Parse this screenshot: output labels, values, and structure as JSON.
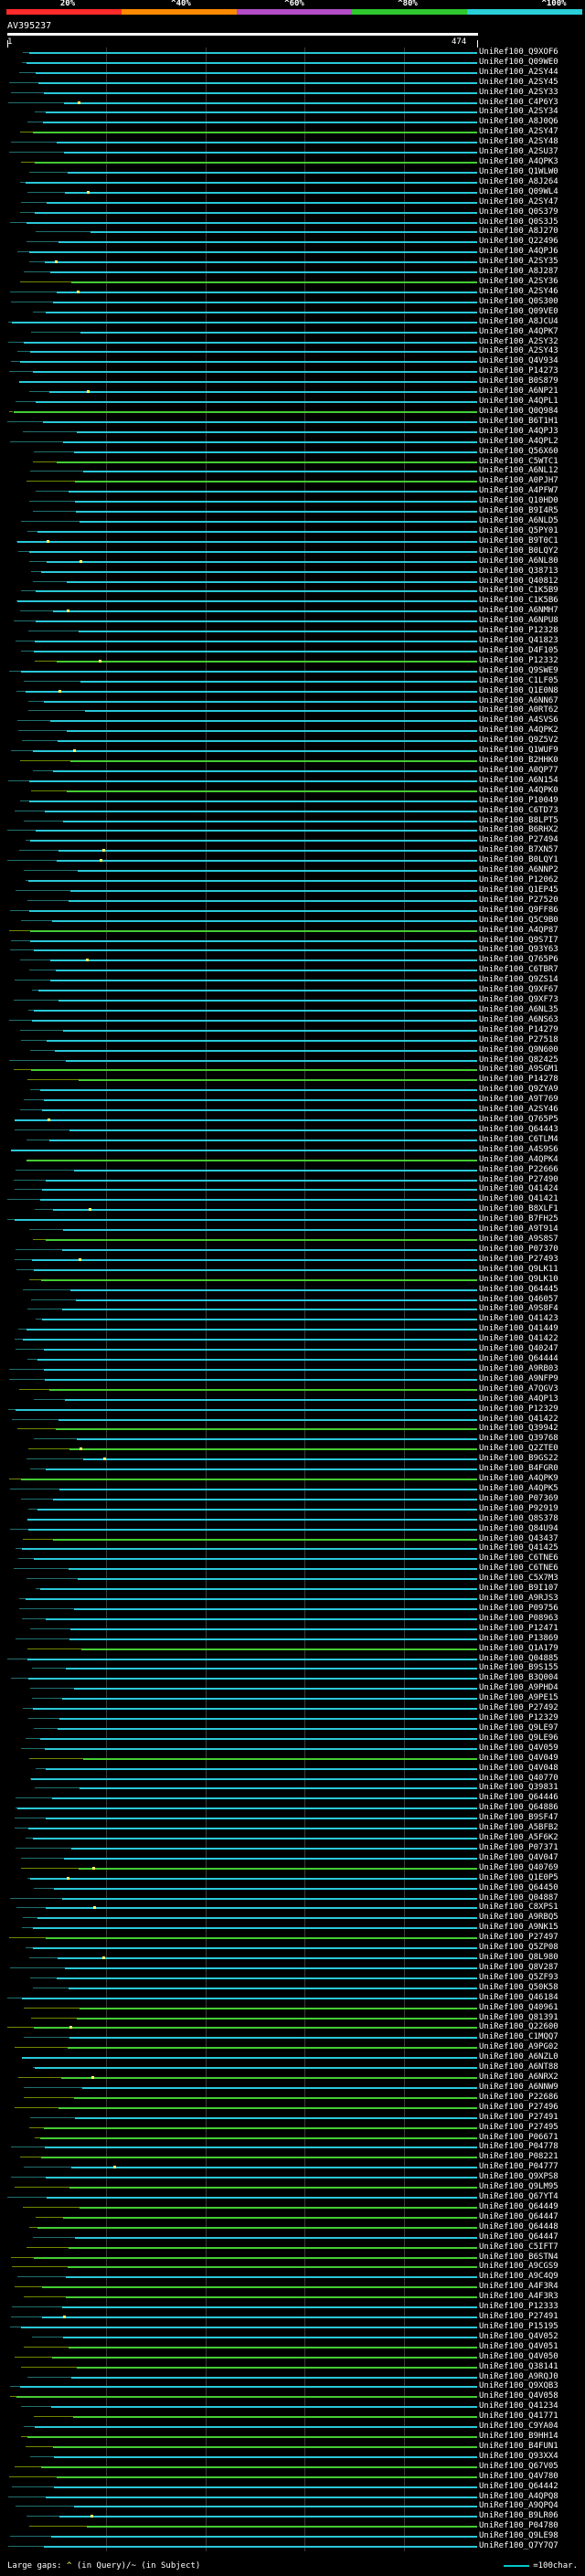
{
  "scale": {
    "labels": [
      "20%",
      "^40%",
      "^60%",
      "^80%",
      "^100%"
    ],
    "colors": [
      "#ff2a2a",
      "#ff8a00",
      "#b44cc8",
      "#2fc82f",
      "#29d0d8"
    ]
  },
  "query": {
    "id": "AV395237",
    "start": "1",
    "end": "474"
  },
  "hits": {
    "colors": {
      "main": "#29c8d8",
      "green": "#44cc33",
      "olive": "#6f8a00",
      "gap": "#1f6f6f",
      "mark": "#ffff66"
    },
    "query_length": 474,
    "ids": [
      "UniRef100_Q9XOF6",
      "UniRef100_Q09WE0",
      "UniRef100_A2SY44",
      "UniRef100_A2SY45",
      "UniRef100_A2SY33",
      "UniRef100_C4P6Y3",
      "UniRef100_A2SY34",
      "UniRef100_A8J0Q6",
      "UniRef100_A2SY47",
      "UniRef100_A2SY48",
      "UniRef100_A2SU37",
      "UniRef100_A4QPK3",
      "UniRef100_Q1WLW0",
      "UniRef100_A8J264",
      "UniRef100_Q09WL4",
      "UniRef100_A2SY47",
      "UniRef100_Q0S379",
      "UniRef100_Q0S3J5",
      "UniRef100_A8J270",
      "UniRef100_Q22496",
      "UniRef100_A4QPJ6",
      "UniRef100_A2SY35",
      "UniRef100_A8J287",
      "UniRef100_A2SY36",
      "UniRef100_A2SY46",
      "UniRef100_Q0S300",
      "UniRef100_Q09VE0",
      "UniRef100_A8JCU4",
      "UniRef100_A4QPK7",
      "UniRef100_A2SY32",
      "UniRef100_A2SY43",
      "UniRef100_Q4V934",
      "UniRef100_P14273",
      "UniRef100_B0S879",
      "UniRef100_A6NP21",
      "UniRef100_A4QPL1",
      "UniRef100_Q0Q984",
      "UniRef100_B6T1H1",
      "UniRef100_A4QPJ3",
      "UniRef100_A4QPL2",
      "UniRef100_Q56X60",
      "UniRef100_C5WTC1",
      "UniRef100_A6NL12",
      "UniRef100_A0PJH7",
      "UniRef100_A4PFW7",
      "UniRef100_Q10HD0",
      "UniRef100_B9I4R5",
      "UniRef100_A6NLD5",
      "UniRef100_Q5PY01",
      "UniRef100_B9T0C1",
      "UniRef100_B0LQY2",
      "UniRef100_A6NL80",
      "UniRef100_Q38713",
      "UniRef100_Q40812",
      "UniRef100_C1K5B9",
      "UniRef100_C1K5B6",
      "UniRef100_A6NMH7",
      "UniRef100_A6NPU8",
      "UniRef100_P12328",
      "UniRef100_Q41823",
      "UniRef100_D4F105",
      "UniRef100_P12332",
      "UniRef100_Q9SWE9",
      "UniRef100_C1LF05",
      "UniRef100_Q1E0N8",
      "UniRef100_A6NN67",
      "UniRef100_A0RT62",
      "UniRef100_A4SVS6",
      "UniRef100_A4QPK2",
      "UniRef100_Q9Z5V2",
      "UniRef100_Q1WUF9",
      "UniRef100_B2HHK0",
      "UniRef100_A0QP77",
      "UniRef100_A6N154",
      "UniRef100_A4QPK0",
      "UniRef100_P10049",
      "UniRef100_C6TD73",
      "UniRef100_B8LPT5",
      "UniRef100_B6RHX2",
      "UniRef100_P27494",
      "UniRef100_B7XN57",
      "UniRef100_B0LQY1",
      "UniRef100_A6NNP2",
      "UniRef100_P12062",
      "UniRef100_Q1EP45",
      "UniRef100_P27520",
      "UniRef100_Q9FF86",
      "UniRef100_Q5C9B0",
      "UniRef100_A4QP87",
      "UniRef100_Q9S7I7",
      "UniRef100_Q93Y63",
      "UniRef100_Q765P6",
      "UniRef100_C6TBR7",
      "UniRef100_Q9ZS14",
      "UniRef100_Q9XF67",
      "UniRef100_Q9XF73",
      "UniRef100_A6NL35",
      "UniRef100_A6NS63",
      "UniRef100_P14279",
      "UniRef100_P27518",
      "UniRef100_Q9N600",
      "UniRef100_Q82425",
      "UniRef100_A9SGM1",
      "UniRef100_P14278",
      "UniRef100_Q9ZYA9",
      "UniRef100_A9T769",
      "UniRef100_A2SY46",
      "UniRef100_Q765P5",
      "UniRef100_Q64443",
      "UniRef100_C6TLM4",
      "UniRef100_A4S9S6",
      "UniRef100_A4QPK4",
      "UniRef100_P22666",
      "UniRef100_P27490",
      "UniRef100_Q41424",
      "UniRef100_Q41421",
      "UniRef100_B8XLF1",
      "UniRef100_B7FH25",
      "UniRef100_A9T914",
      "UniRef100_A9S8S7",
      "UniRef100_P07370",
      "UniRef100_P27493",
      "UniRef100_Q9LK11",
      "UniRef100_Q9LK10",
      "UniRef100_Q64445",
      "UniRef100_Q46057",
      "UniRef100_A9S8F4",
      "UniRef100_Q41423",
      "UniRef100_Q41449",
      "UniRef100_Q41422",
      "UniRef100_Q40247",
      "UniRef100_Q64444",
      "UniRef100_A9RB03",
      "UniRef100_A9NFP9",
      "UniRef100_A7QGV3",
      "UniRef100_A4QP13",
      "UniRef100_P12329",
      "UniRef100_Q41422",
      "UniRef100_Q39942",
      "UniRef100_Q39768",
      "UniRef100_Q2ZTE0",
      "UniRef100_B9GS22",
      "UniRef100_B4FGR0",
      "UniRef100_A4QPK9",
      "UniRef100_A4QPK5",
      "UniRef100_P07369",
      "UniRef100_P92919",
      "UniRef100_Q8S378",
      "UniRef100_Q84U94",
      "UniRef100_Q43437",
      "UniRef100_Q41425",
      "UniRef100_C6TNE6",
      "UniRef100_C6TNE6",
      "UniRef100_C5X7M3",
      "UniRef100_B9I107",
      "UniRef100_A9RJS3",
      "UniRef100_P09756",
      "UniRef100_P08963",
      "UniRef100_P12471",
      "UniRef100_P13869",
      "UniRef100_Q1A179",
      "UniRef100_Q04885",
      "UniRef100_B9S155",
      "UniRef100_B3Q004",
      "UniRef100_A9PHD4",
      "UniRef100_A9PE15",
      "UniRef100_P27492",
      "UniRef100_P12329",
      "UniRef100_Q9LE97",
      "UniRef100_Q9LE96",
      "UniRef100_Q4V059",
      "UniRef100_Q4V049",
      "UniRef100_Q4V048",
      "UniRef100_Q40770",
      "UniRef100_Q39831",
      "UniRef100_Q64446",
      "UniRef100_Q64886",
      "UniRef100_B9SF47",
      "UniRef100_A5BFB2",
      "UniRef100_A5F6K2",
      "UniRef100_P07371",
      "UniRef100_Q4V047",
      "UniRef100_Q40769",
      "UniRef100_Q1E0P5",
      "UniRef100_Q64450",
      "UniRef100_Q04887",
      "UniRef100_C8XPS1",
      "UniRef100_A9RBQ5",
      "UniRef100_A9NK15",
      "UniRef100_P27497",
      "UniRef100_Q5ZP08",
      "UniRef100_Q8L980",
      "UniRef100_Q8V287",
      "UniRef100_Q5ZF93",
      "UniRef100_Q50K58",
      "UniRef100_Q46184",
      "UniRef100_Q40961",
      "UniRef100_Q81391",
      "UniRef100_Q22600",
      "UniRef100_C1MQQ7",
      "UniRef100_A9PG02",
      "UniRef100_A6NZL0",
      "UniRef100_A6NT88",
      "UniRef100_A6NRX2",
      "UniRef100_A6NNW9",
      "UniRef100_P22686",
      "UniRef100_P27496",
      "UniRef100_P27491",
      "UniRef100_P27495",
      "UniRef100_P06671",
      "UniRef100_P04778",
      "UniRef100_P08221",
      "UniRef100_P04777",
      "UniRef100_Q9XPS8",
      "UniRef100_Q9LM95",
      "UniRef100_Q67YT4",
      "UniRef100_Q64449",
      "UniRef100_Q64447",
      "UniRef100_Q64448",
      "UniRef100_Q64447",
      "UniRef100_C5IFT7",
      "UniRef100_B6STN4",
      "UniRef100_A9CGS9",
      "UniRef100_A9C4Q9",
      "UniRef100_A4F3R4",
      "UniRef100_A4F3R3",
      "UniRef100_P12333",
      "UniRef100_P27491",
      "UniRef100_P15195",
      "UniRef100_Q4V052",
      "UniRef100_Q4V051",
      "UniRef100_Q4V050",
      "UniRef100_Q38141",
      "UniRef100_A9RQJ0",
      "UniRef100_Q9XQB3",
      "UniRef100_Q4V058",
      "UniRef100_Q41234",
      "UniRef100_Q41771",
      "UniRef100_C9YA04",
      "UniRef100_B9HH14",
      "UniRef100_B4FUN1",
      "UniRef100_Q93XX4",
      "UniRef100_Q67V05",
      "UniRef100_Q4V780",
      "UniRef100_Q64442",
      "UniRef100_A4QPQ8",
      "UniRef100_A9QPQ4",
      "UniRef100_B9LR06",
      "UniRef100_P04780",
      "UniRef100_Q9LE98",
      "UniRef100_Q7Y7Q7"
    ]
  },
  "footer": {
    "left_text": "Large gaps: ",
    "query_marker": "^",
    "query_text": " (in Query)/",
    "subject_marker": "~",
    "subject_text": " (in Subject)",
    "legend_text": "=100char."
  }
}
